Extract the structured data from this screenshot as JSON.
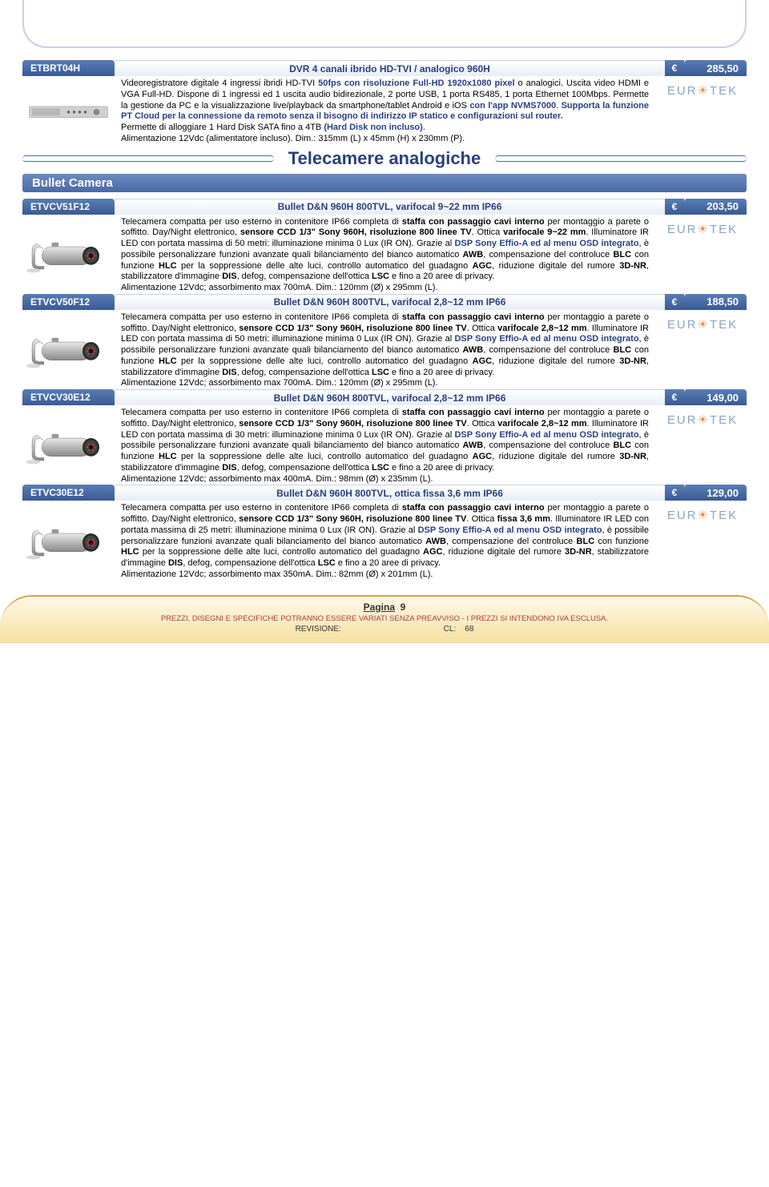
{
  "section": {
    "title": "Telecamere analogiche",
    "subtitle": "Bullet Camera"
  },
  "brand": "EUROTEK",
  "colors": {
    "header_blue": "#3a5a95",
    "text_blue": "#2a4080",
    "brand_gray": "#8aa4c8",
    "brand_orange": "#e89050",
    "footer_border": "#d4a040"
  },
  "footer": {
    "page_label": "Pagina",
    "page_number": "9",
    "disclaimer": "PREZZI, DISEGNI E SPECIFICHE POTRANNO ESSERE VARIATI SENZA PREAVVISO - I PREZZI SI INTENDONO IVA ESCLUSA.",
    "revision_label": "REVISIONE:",
    "cl_label": "CL:",
    "cl_value": "68"
  },
  "products": [
    {
      "sku": "ETBRT04H",
      "title": "DVR 4 canali ibrido HD-TVI / analogico 960H",
      "currency": "€",
      "price": "285,50",
      "img": "dvr",
      "desc_html": "Videoregistratore digitale 4 ingressi ibridi HD-TVI <span class='b blue'>50fps con risoluzione Full-HD 1920x1080 pixel</span> o analogici. Uscita video HDMI e VGA Full-HD. Dispone di 1 ingressi ed 1 uscita audio bidirezionale, 2 porte USB, 1 porta RS485, 1 porta Ethernet 100Mbps. Permette la gestione da PC e la visualizzazione live/playback da smartphone/tablet Android e iOS <span class='b blue'>con l'app NVMS7000</span>. <span class='b blue'>Supporta la funzione PT Cloud per la connessione da remoto senza il bisogno di indirizzo IP statico e configurazioni sul router.</span><br>Permette di alloggiare 1 Hard Disk SATA fino a 4TB <span class='b blue'>(Hard Disk non incluso)</span>.<br>Alimentazione 12Vdc (alimentatore incluso). Dim.: 315mm (L) x 45mm (H) x 230mm (P)."
    },
    {
      "sku": "ETVCV51F12",
      "title": "Bullet D&N 960H 800TVL, varifocal 9~22 mm IP66",
      "currency": "€",
      "price": "203,50",
      "img": "camera",
      "desc_html": "Telecamera compatta per uso esterno in contenitore IP66 completa di <span class='b'>staffa con passaggio cavi interno</span> per montaggio a parete o soffitto. Day/Night elettronico, <span class='b'>sensore CCD 1/3\" Sony 960H, risoluzione 800 linee TV</span>. Ottica <span class='b'>varifocale 9~22 mm</span>. Illuminatore IR LED con portata massima di 50 metri: illuminazione minima 0 Lux (IR ON). Grazie al <span class='b blue'>DSP Sony Effio-A ed al menu OSD integrato</span>, è possibile personalizzare funzioni avanzate quali bilanciamento del bianco automatico <span class='b'>AWB</span>, compensazione del controluce <span class='b'>BLC</span> con funzione <span class='b'>HLC</span> per la soppressione delle alte luci, controllo automatico del guadagno <span class='b'>AGC</span>, riduzione digitale del rumore <span class='b'>3D-NR</span>, stabilizzatore d'immagine <span class='b'>DIS</span>, defog, compensazione dell'ottica <span class='b'>LSC</span> e fino a 20 aree di privacy.<br>Alimentazione 12Vdc; assorbimento max 700mA. Dim.: 120mm (Ø) x 295mm (L)."
    },
    {
      "sku": "ETVCV50F12",
      "title": "Bullet D&N 960H 800TVL, varifocal 2,8~12 mm IP66",
      "currency": "€",
      "price": "188,50",
      "img": "camera",
      "desc_html": "Telecamera compatta per uso esterno in contenitore IP66 completa di <span class='b'>staffa con passaggio cavi interno</span> per montaggio a parete o soffitto. Day/Night elettronico, <span class='b'>sensore CCD 1/3\" Sony 960H, risoluzione 800 linee TV</span>. Ottica <span class='b'>varifocale 2,8~12 mm</span>. Illuminatore IR LED con portata massima di 50 metri: illuminazione minima 0 Lux (IR ON). Grazie al <span class='b blue'>DSP Sony Effio-A ed al menu OSD integrato</span>, è possibile personalizzare funzioni avanzate quali bilanciamento del bianco automatico <span class='b'>AWB</span>, compensazione del controluce <span class='b'>BLC</span> con funzione <span class='b'>HLC</span> per la soppressione delle alte luci, controllo automatico del guadagno <span class='b'>AGC</span>, riduzione digitale del rumore <span class='b'>3D-NR</span>, stabilizzatore d'immagine <span class='b'>DIS</span>, defog, compensazione dell'ottica <span class='b'>LSC</span> e fino a 20 aree di privacy.<br>Alimentazione 12Vdc; assorbimento max 700mA. Dim.: 120mm (Ø) x 295mm (L)."
    },
    {
      "sku": "ETVCV30E12",
      "title": "Bullet D&N 960H 800TVL, varifocal 2,8~12 mm IP66",
      "currency": "€",
      "price": "149,00",
      "img": "camera",
      "desc_html": "Telecamera compatta per uso esterno in contenitore IP66 completa di <span class='b'>staffa con passaggio cavi interno</span> per montaggio a parete o soffitto. Day/Night elettronico, <span class='b'>sensore CCD 1/3\" Sony 960H, risoluzione 800 linee TV</span>. Ottica <span class='b'>varifocale 2,8~12 mm</span>. Illuminatore IR LED con portata massima di 30 metri: illuminazione minima 0 Lux (IR ON). Grazie al <span class='b blue'>DSP Sony Effio-A ed al menu OSD integrato</span>, è possibile personalizzare funzioni avanzate quali bilanciamento del bianco automatico <span class='b'>AWB</span>, compensazione del controluce <span class='b'>BLC</span> con funzione <span class='b'>HLC</span> per la soppressione delle alte luci, controllo automatico del guadagno <span class='b'>AGC</span>, riduzione digitale del rumore <span class='b'>3D-NR</span>, stabilizzatore d'immagine <span class='b'>DIS</span>, defog, compensazione dell'ottica <span class='b'>LSC</span> e fino a 20 aree di privacy.<br>Alimentazione 12Vdc; assorbimento max 400mA. Dim.: 98mm (Ø) x 235mm (L)."
    },
    {
      "sku": "ETVC30E12",
      "title": "Bullet D&N 960H 800TVL, ottica fissa 3,6 mm IP66",
      "currency": "€",
      "price": "129,00",
      "img": "camera",
      "desc_html": "Telecamera compatta per uso esterno in contenitore IP66 completa di <span class='b'>staffa con passaggio cavi interno</span> per montaggio a parete o soffitto. Day/Night elettronico, <span class='b'>sensore CCD 1/3\" Sony 960H, risoluzione 800 linee TV</span>. Ottica <span class='b'>fissa 3,6 mm</span>. Illuminatore IR LED con portata massima di 25 metri: illuminazione minima 0 Lux (IR ON). Grazie al <span class='b blue'>DSP Sony Effio-A ed al menu OSD integrato</span>, è possibile personalizzare funzioni avanzate quali bilanciamento del bianco automatico <span class='b'>AWB</span>, compensazione del controluce <span class='b'>BLC</span> con funzione <span class='b'>HLC</span> per la soppressione delle alte luci, controllo automatico del guadagno <span class='b'>AGC</span>, riduzione digitale del rumore <span class='b'>3D-NR</span>, stabilizzatore d'immagine <span class='b'>DIS</span>, defog, compensazione dell'ottica <span class='b'>LSC</span> e fino a 20 aree di privacy.<br>Alimentazione 12Vdc; assorbimento max 350mA. Dim.: 82mm (Ø) x 201mm (L)."
    }
  ]
}
